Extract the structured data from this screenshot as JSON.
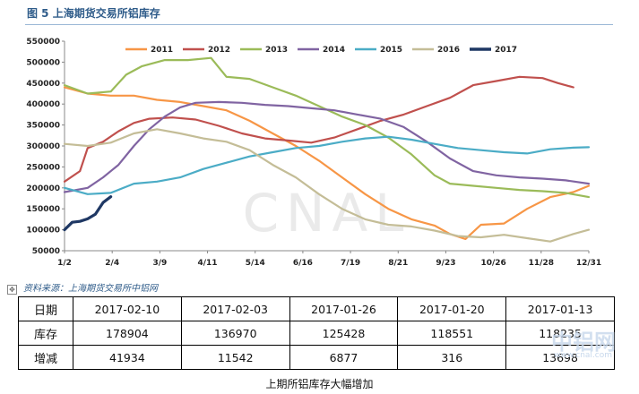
{
  "title": "图 5 上海期货交易所铝库存",
  "source": "资料来源：上海期货交易所中铝网",
  "caption": "上期所铝库存大幅增加",
  "watermark": "CNAL",
  "corner_watermark": "中铝网",
  "corner_watermark_url": "www.cnal.com",
  "table": {
    "rows": [
      {
        "label": "日期",
        "cells": [
          "2017-02-10",
          "2017-02-03",
          "2017-01-26",
          "2017-01-20",
          "2017-01-13"
        ]
      },
      {
        "label": "库存",
        "cells": [
          "178904",
          "136970",
          "125428",
          "118551",
          "118235"
        ]
      },
      {
        "label": "增减",
        "cells": [
          "41934",
          "11542",
          "6877",
          "316",
          "13698"
        ]
      }
    ]
  },
  "chart_data": {
    "type": "line",
    "ylim": [
      50000,
      550000
    ],
    "yticks": [
      "550000",
      "500000",
      "450000",
      "400000",
      "350000",
      "300000",
      "250000",
      "200000",
      "150000",
      "100000",
      "50000"
    ],
    "xtick_labels": [
      "1/2",
      "2/4",
      "3/9",
      "4/11",
      "5/14",
      "6/16",
      "7/19",
      "8/21",
      "9/23",
      "10/26",
      "11/28",
      "12/31"
    ],
    "legend_position": "top",
    "series": [
      {
        "name": "2011",
        "color": "#f79646",
        "values": [
          [
            0,
            440000
          ],
          [
            3,
            425000
          ],
          [
            6,
            420000
          ],
          [
            9,
            420000
          ],
          [
            12,
            410000
          ],
          [
            15,
            405000
          ],
          [
            18,
            395000
          ],
          [
            21,
            385000
          ],
          [
            24,
            360000
          ],
          [
            27,
            330000
          ],
          [
            30,
            300000
          ],
          [
            33,
            265000
          ],
          [
            36,
            225000
          ],
          [
            39,
            185000
          ],
          [
            42,
            150000
          ],
          [
            45,
            125000
          ],
          [
            48,
            110000
          ],
          [
            50,
            90000
          ],
          [
            52,
            78000
          ],
          [
            54,
            112000
          ],
          [
            57,
            115000
          ],
          [
            60,
            150000
          ],
          [
            63,
            178000
          ],
          [
            66,
            190000
          ],
          [
            68,
            205000
          ]
        ]
      },
      {
        "name": "2012",
        "color": "#c0504d",
        "values": [
          [
            0,
            215000
          ],
          [
            2,
            240000
          ],
          [
            3,
            295000
          ],
          [
            5,
            310000
          ],
          [
            7,
            335000
          ],
          [
            9,
            355000
          ],
          [
            11,
            365000
          ],
          [
            14,
            368000
          ],
          [
            17,
            363000
          ],
          [
            20,
            348000
          ],
          [
            23,
            330000
          ],
          [
            26,
            318000
          ],
          [
            29,
            313000
          ],
          [
            32,
            308000
          ],
          [
            35,
            320000
          ],
          [
            38,
            340000
          ],
          [
            41,
            360000
          ],
          [
            44,
            375000
          ],
          [
            47,
            395000
          ],
          [
            50,
            415000
          ],
          [
            53,
            445000
          ],
          [
            56,
            455000
          ],
          [
            59,
            465000
          ],
          [
            62,
            462000
          ],
          [
            64,
            450000
          ],
          [
            66,
            440000
          ]
        ]
      },
      {
        "name": "2013",
        "color": "#9bbb59",
        "values": [
          [
            0,
            445000
          ],
          [
            3,
            425000
          ],
          [
            6,
            430000
          ],
          [
            8,
            470000
          ],
          [
            10,
            490000
          ],
          [
            13,
            505000
          ],
          [
            16,
            505000
          ],
          [
            19,
            510000
          ],
          [
            21,
            465000
          ],
          [
            24,
            460000
          ],
          [
            27,
            440000
          ],
          [
            30,
            420000
          ],
          [
            33,
            395000
          ],
          [
            36,
            370000
          ],
          [
            39,
            350000
          ],
          [
            42,
            320000
          ],
          [
            45,
            280000
          ],
          [
            48,
            230000
          ],
          [
            50,
            210000
          ],
          [
            53,
            205000
          ],
          [
            56,
            200000
          ],
          [
            59,
            195000
          ],
          [
            62,
            192000
          ],
          [
            65,
            188000
          ],
          [
            68,
            178000
          ]
        ]
      },
      {
        "name": "2014",
        "color": "#8064a2",
        "values": [
          [
            0,
            190000
          ],
          [
            3,
            200000
          ],
          [
            5,
            225000
          ],
          [
            7,
            255000
          ],
          [
            9,
            300000
          ],
          [
            11,
            340000
          ],
          [
            13,
            370000
          ],
          [
            15,
            392000
          ],
          [
            17,
            403000
          ],
          [
            20,
            405000
          ],
          [
            23,
            403000
          ],
          [
            26,
            398000
          ],
          [
            29,
            395000
          ],
          [
            32,
            390000
          ],
          [
            35,
            385000
          ],
          [
            38,
            375000
          ],
          [
            41,
            365000
          ],
          [
            44,
            345000
          ],
          [
            47,
            310000
          ],
          [
            50,
            270000
          ],
          [
            53,
            240000
          ],
          [
            56,
            230000
          ],
          [
            59,
            225000
          ],
          [
            62,
            222000
          ],
          [
            65,
            218000
          ],
          [
            68,
            210000
          ]
        ]
      },
      {
        "name": "2015",
        "color": "#4bacc6",
        "values": [
          [
            0,
            200000
          ],
          [
            3,
            185000
          ],
          [
            6,
            188000
          ],
          [
            9,
            210000
          ],
          [
            12,
            215000
          ],
          [
            15,
            225000
          ],
          [
            18,
            245000
          ],
          [
            21,
            260000
          ],
          [
            24,
            275000
          ],
          [
            27,
            285000
          ],
          [
            30,
            295000
          ],
          [
            33,
            300000
          ],
          [
            36,
            310000
          ],
          [
            39,
            318000
          ],
          [
            42,
            322000
          ],
          [
            45,
            315000
          ],
          [
            48,
            305000
          ],
          [
            51,
            295000
          ],
          [
            54,
            290000
          ],
          [
            57,
            285000
          ],
          [
            60,
            282000
          ],
          [
            63,
            292000
          ],
          [
            66,
            296000
          ],
          [
            68,
            297000
          ]
        ]
      },
      {
        "name": "2016",
        "color": "#c4bd97",
        "values": [
          [
            0,
            305000
          ],
          [
            3,
            300000
          ],
          [
            6,
            308000
          ],
          [
            9,
            330000
          ],
          [
            12,
            340000
          ],
          [
            15,
            330000
          ],
          [
            18,
            318000
          ],
          [
            21,
            310000
          ],
          [
            24,
            290000
          ],
          [
            27,
            255000
          ],
          [
            30,
            225000
          ],
          [
            33,
            185000
          ],
          [
            36,
            150000
          ],
          [
            39,
            125000
          ],
          [
            42,
            112000
          ],
          [
            45,
            108000
          ],
          [
            48,
            98000
          ],
          [
            51,
            85000
          ],
          [
            54,
            82000
          ],
          [
            57,
            88000
          ],
          [
            60,
            80000
          ],
          [
            63,
            72000
          ],
          [
            66,
            90000
          ],
          [
            68,
            100000
          ]
        ]
      },
      {
        "name": "2017",
        "color": "#1f3864",
        "values": [
          [
            0,
            100000
          ],
          [
            1,
            118000
          ],
          [
            2,
            120000
          ],
          [
            3,
            126000
          ],
          [
            4,
            137000
          ],
          [
            5,
            165000
          ],
          [
            6,
            178904
          ]
        ]
      }
    ]
  }
}
